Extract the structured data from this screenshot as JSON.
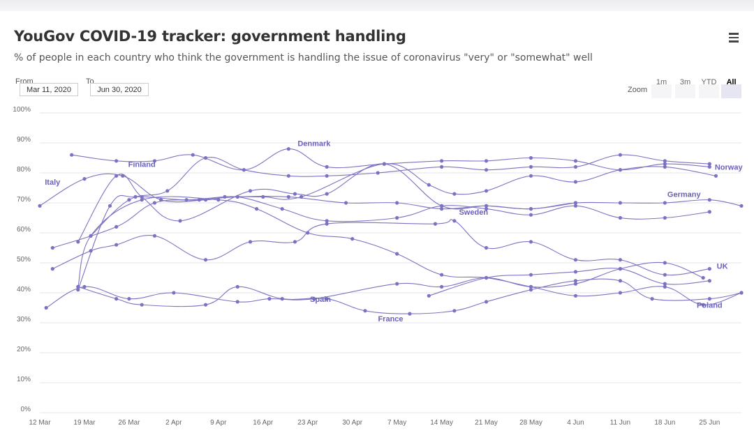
{
  "header": {
    "title": "YouGov COVID-19 tracker: government handling",
    "subtitle": "% of people in each country who think the government is handling the issue of coronavirus \"very\" or \"somewhat\" well",
    "menu_icon": "hamburger-menu-icon"
  },
  "range": {
    "from_label": "From",
    "from_value": "Mar 11, 2020",
    "to_label": "To",
    "to_value": "Jun 30, 2020"
  },
  "zoom": {
    "label": "Zoom",
    "buttons": [
      "1m",
      "3m",
      "YTD",
      "All"
    ],
    "active": "All"
  },
  "colors": {
    "series": "#7b72c2",
    "label": "#6a62b8",
    "grid": "#e6e6e6",
    "axis_text": "#666666"
  },
  "chart_data": {
    "type": "line",
    "title": "YouGov COVID-19 tracker: government handling",
    "xlabel": "",
    "ylabel": "",
    "ylim": [
      0,
      100
    ],
    "y_ticks": [
      "0%",
      "10%",
      "20%",
      "30%",
      "40%",
      "50%",
      "60%",
      "70%",
      "80%",
      "90%",
      "100%"
    ],
    "x_ticks": [
      {
        "date": "2020-03-12",
        "label": "12 Mar"
      },
      {
        "date": "2020-03-19",
        "label": "19 Mar"
      },
      {
        "date": "2020-03-26",
        "label": "26 Mar"
      },
      {
        "date": "2020-04-02",
        "label": "2 Apr"
      },
      {
        "date": "2020-04-09",
        "label": "9 Apr"
      },
      {
        "date": "2020-04-16",
        "label": "16 Apr"
      },
      {
        "date": "2020-04-23",
        "label": "23 Apr"
      },
      {
        "date": "2020-04-30",
        "label": "30 Apr"
      },
      {
        "date": "2020-05-07",
        "label": "7 May"
      },
      {
        "date": "2020-05-14",
        "label": "14 May"
      },
      {
        "date": "2020-05-21",
        "label": "21 May"
      },
      {
        "date": "2020-05-28",
        "label": "28 May"
      },
      {
        "date": "2020-06-04",
        "label": "4 Jun"
      },
      {
        "date": "2020-06-11",
        "label": "11 Jun"
      },
      {
        "date": "2020-06-18",
        "label": "18 Jun"
      },
      {
        "date": "2020-06-25",
        "label": "25 Jun"
      }
    ],
    "x_range": [
      "2020-03-12",
      "2020-06-30"
    ],
    "grid": true,
    "legend": "none",
    "series": [
      {
        "name": "Denmark",
        "label_at": [
          "2020-04-24",
          89
        ],
        "points": [
          [
            "2020-03-17",
            86
          ],
          [
            "2020-03-24",
            84
          ],
          [
            "2020-03-30",
            84
          ],
          [
            "2020-04-05",
            86
          ],
          [
            "2020-04-13",
            81
          ],
          [
            "2020-04-20",
            88
          ],
          [
            "2020-04-26",
            82
          ],
          [
            "2020-05-05",
            83
          ],
          [
            "2020-05-14",
            84
          ],
          [
            "2020-05-21",
            84
          ],
          [
            "2020-05-28",
            85
          ],
          [
            "2020-06-04",
            84
          ],
          [
            "2020-06-11",
            81
          ],
          [
            "2020-06-18",
            83
          ],
          [
            "2020-06-25",
            82
          ]
        ]
      },
      {
        "name": "Norway",
        "label_at": [
          "2020-06-28",
          81
        ],
        "points": [
          [
            "2020-03-20",
            59
          ],
          [
            "2020-03-26",
            71
          ],
          [
            "2020-04-01",
            74
          ],
          [
            "2020-04-07",
            85
          ],
          [
            "2020-04-13",
            81
          ],
          [
            "2020-04-20",
            79
          ],
          [
            "2020-04-26",
            79
          ],
          [
            "2020-05-04",
            80
          ],
          [
            "2020-05-14",
            82
          ],
          [
            "2020-05-21",
            81
          ],
          [
            "2020-05-28",
            82
          ],
          [
            "2020-06-04",
            82
          ],
          [
            "2020-06-11",
            86
          ],
          [
            "2020-06-18",
            84
          ],
          [
            "2020-06-25",
            83
          ]
        ]
      },
      {
        "name": "Finland",
        "label_at": [
          "2020-03-28",
          82
        ],
        "points": [
          [
            "2020-03-18",
            41
          ],
          [
            "2020-03-23",
            69
          ],
          [
            "2020-03-27",
            72
          ],
          [
            "2020-04-04",
            71
          ],
          [
            "2020-04-10",
            72
          ],
          [
            "2020-04-16",
            72
          ],
          [
            "2020-04-22",
            72
          ],
          [
            "2020-05-05",
            83
          ],
          [
            "2020-05-12",
            76
          ],
          [
            "2020-05-16",
            73
          ],
          [
            "2020-05-21",
            74
          ],
          [
            "2020-05-28",
            79
          ],
          [
            "2020-06-04",
            77
          ],
          [
            "2020-06-11",
            81
          ],
          [
            "2020-06-18",
            82
          ],
          [
            "2020-06-26",
            79
          ]
        ]
      },
      {
        "name": "Italy",
        "label_at": [
          "2020-03-14",
          76
        ],
        "points": [
          [
            "2020-03-12",
            69
          ],
          [
            "2020-03-19",
            78
          ],
          [
            "2020-03-25",
            79
          ],
          [
            "2020-03-31",
            71
          ],
          [
            "2020-04-07",
            71
          ],
          [
            "2020-04-12",
            72
          ],
          [
            "2020-04-19",
            68
          ],
          [
            "2020-04-26",
            64
          ],
          [
            "2020-05-07",
            65
          ],
          [
            "2020-05-14",
            69
          ],
          [
            "2020-05-21",
            68
          ],
          [
            "2020-05-28",
            66
          ],
          [
            "2020-06-04",
            69
          ],
          [
            "2020-06-11",
            65
          ],
          [
            "2020-06-18",
            65
          ],
          [
            "2020-06-25",
            67
          ]
        ]
      },
      {
        "name": "Germany",
        "label_at": [
          "2020-06-21",
          72
        ],
        "points": [
          [
            "2020-03-14",
            55
          ],
          [
            "2020-03-24",
            62
          ],
          [
            "2020-03-30",
            70
          ],
          [
            "2020-04-06",
            71
          ],
          [
            "2020-04-12",
            72
          ],
          [
            "2020-04-20",
            72
          ],
          [
            "2020-04-29",
            70
          ],
          [
            "2020-05-07",
            70
          ],
          [
            "2020-05-14",
            68
          ],
          [
            "2020-05-21",
            69
          ],
          [
            "2020-05-28",
            68
          ],
          [
            "2020-06-04",
            70
          ],
          [
            "2020-06-11",
            70
          ],
          [
            "2020-06-18",
            70
          ],
          [
            "2020-06-25",
            71
          ],
          [
            "2020-06-30",
            69
          ]
        ]
      },
      {
        "name": "Sweden",
        "label_at": [
          "2020-05-19",
          66
        ],
        "points": [
          [
            "2020-03-18",
            57
          ],
          [
            "2020-03-24",
            79
          ],
          [
            "2020-03-28",
            72
          ],
          [
            "2020-04-03",
            64
          ],
          [
            "2020-04-14",
            74
          ],
          [
            "2020-04-21",
            73
          ],
          [
            "2020-04-26",
            73
          ],
          [
            "2020-05-05",
            83
          ],
          [
            "2020-05-14",
            69
          ],
          [
            "2020-05-21",
            69
          ],
          [
            "2020-05-28",
            68
          ],
          [
            "2020-06-04",
            70
          ]
        ]
      },
      {
        "name": "UK",
        "label_at": [
          "2020-06-27",
          48
        ],
        "points": [
          [
            "2020-03-14",
            48
          ],
          [
            "2020-03-20",
            54
          ],
          [
            "2020-03-24",
            56
          ],
          [
            "2020-03-30",
            59
          ],
          [
            "2020-04-07",
            51
          ],
          [
            "2020-04-14",
            57
          ],
          [
            "2020-04-21",
            57
          ],
          [
            "2020-04-26",
            63
          ],
          [
            "2020-05-13",
            63
          ],
          [
            "2020-05-16",
            64
          ],
          [
            "2020-05-21",
            55
          ],
          [
            "2020-05-28",
            57
          ],
          [
            "2020-06-04",
            51
          ],
          [
            "2020-06-11",
            51
          ],
          [
            "2020-06-18",
            46
          ],
          [
            "2020-06-25",
            48
          ]
        ]
      },
      {
        "name": "Poland",
        "label_at": [
          "2020-06-25",
          35
        ],
        "points": [
          [
            "2020-03-18",
            42
          ],
          [
            "2020-03-20",
            59
          ],
          [
            "2020-03-28",
            71
          ],
          [
            "2020-04-09",
            71
          ],
          [
            "2020-04-15",
            68
          ],
          [
            "2020-04-23",
            60
          ],
          [
            "2020-04-30",
            58
          ],
          [
            "2020-05-07",
            53
          ],
          [
            "2020-05-14",
            46
          ],
          [
            "2020-05-21",
            45
          ],
          [
            "2020-05-28",
            42
          ],
          [
            "2020-06-04",
            39
          ],
          [
            "2020-06-11",
            40
          ],
          [
            "2020-06-18",
            42
          ],
          [
            "2020-06-24",
            36
          ],
          [
            "2020-06-30",
            40
          ]
        ]
      },
      {
        "name": "Spain",
        "label_at": [
          "2020-04-25",
          37
        ],
        "points": [
          [
            "2020-03-13",
            35
          ],
          [
            "2020-03-19",
            42
          ],
          [
            "2020-03-26",
            38
          ],
          [
            "2020-04-02",
            40
          ],
          [
            "2020-04-12",
            37
          ],
          [
            "2020-04-17",
            38
          ],
          [
            "2020-04-24",
            38
          ],
          [
            "2020-05-07",
            43
          ],
          [
            "2020-05-14",
            42
          ],
          [
            "2020-05-21",
            45
          ],
          [
            "2020-05-28",
            42
          ],
          [
            "2020-06-04",
            43
          ],
          [
            "2020-06-11",
            48
          ],
          [
            "2020-06-18",
            50
          ],
          [
            "2020-06-24",
            45
          ]
        ]
      },
      {
        "name": "France",
        "label_at": [
          "2020-05-06",
          30.5
        ],
        "points": [
          [
            "2020-03-18",
            42
          ],
          [
            "2020-03-24",
            38
          ],
          [
            "2020-03-28",
            36
          ],
          [
            "2020-04-07",
            36
          ],
          [
            "2020-04-12",
            42
          ],
          [
            "2020-04-19",
            38
          ],
          [
            "2020-04-26",
            38
          ],
          [
            "2020-05-02",
            34
          ],
          [
            "2020-05-09",
            33
          ],
          [
            "2020-05-16",
            34
          ],
          [
            "2020-05-21",
            37
          ],
          [
            "2020-05-28",
            41
          ],
          [
            "2020-06-04",
            44
          ],
          [
            "2020-06-11",
            44
          ],
          [
            "2020-06-16",
            38
          ],
          [
            "2020-06-25",
            38
          ],
          [
            "2020-06-30",
            40
          ]
        ]
      },
      {
        "name": "",
        "points": [
          [
            "2020-05-12",
            39
          ],
          [
            "2020-05-21",
            45
          ],
          [
            "2020-05-28",
            46
          ],
          [
            "2020-06-04",
            47
          ],
          [
            "2020-06-11",
            48
          ],
          [
            "2020-06-18",
            43
          ],
          [
            "2020-06-25",
            44
          ]
        ]
      }
    ]
  }
}
